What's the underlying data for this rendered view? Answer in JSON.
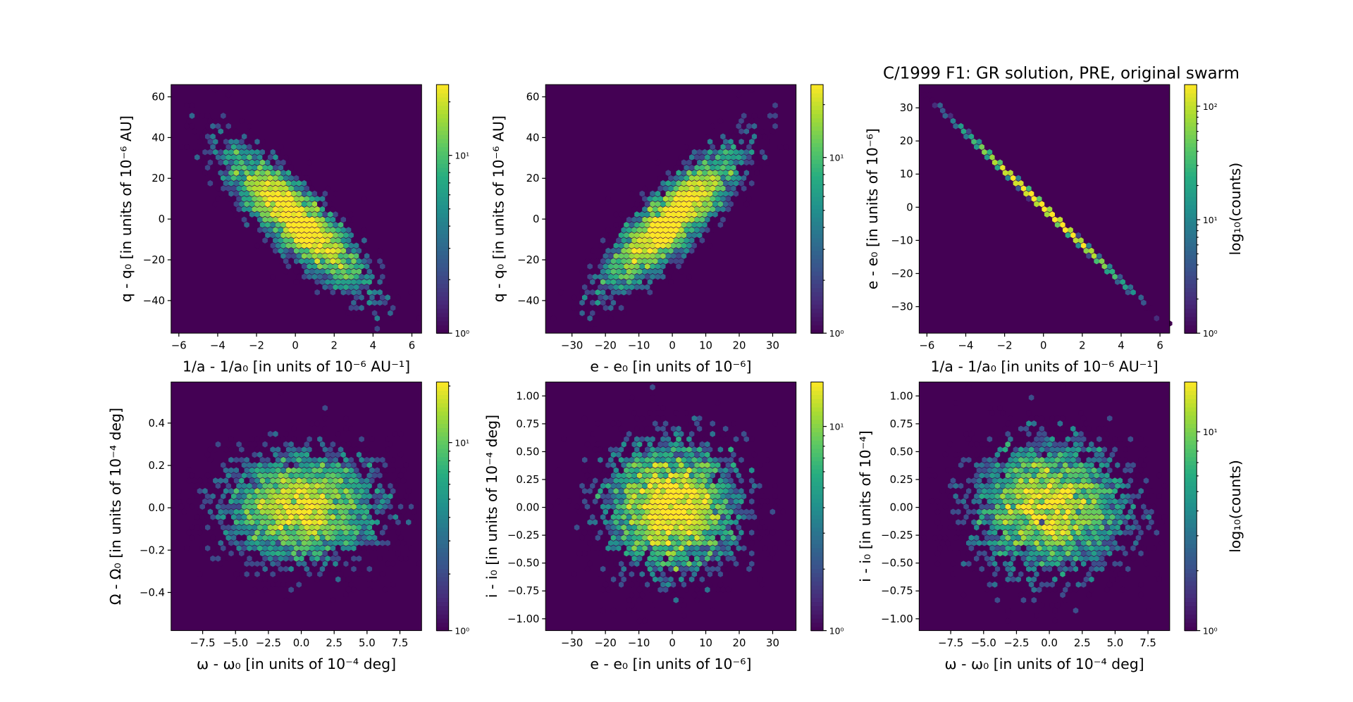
{
  "title": "C/1999 F1: GR solution, PRE, original swarm",
  "chart_data": [
    {
      "type": "heatmap",
      "subtype": "hexbin",
      "xlabel": "1/a - 1/a₀ [in units of 10⁻⁶ AU⁻¹]",
      "ylabel": "q - q₀ [in units of 10⁻⁶ AU]",
      "xlim": [
        -6.4,
        6.5
      ],
      "ylim": [
        -56,
        66
      ],
      "xticks": [
        -6,
        -4,
        -2,
        0,
        2,
        4,
        6
      ],
      "xtick_labels": [
        "−6",
        "−4",
        "−2",
        "0",
        "2",
        "4",
        "6"
      ],
      "yticks": [
        -40,
        -20,
        0,
        20,
        40,
        60
      ],
      "ytick_labels": [
        "−40",
        "−20",
        "0",
        "20",
        "40",
        "60"
      ],
      "correlation": "negative",
      "colorbar": {
        "scale": "log",
        "range": [
          1,
          25
        ],
        "ticks": [
          1,
          10
        ],
        "tick_labels": [
          "10⁰",
          "10¹"
        ],
        "label": ""
      }
    },
    {
      "type": "heatmap",
      "subtype": "hexbin",
      "xlabel": "e - e₀ [in units of 10⁻⁶]",
      "ylabel": "q - q₀ [in units of 10⁻⁶ AU]",
      "xlim": [
        -37.9,
        37
      ],
      "ylim": [
        -56,
        66
      ],
      "xticks": [
        -30,
        -20,
        -10,
        0,
        10,
        20,
        30
      ],
      "xtick_labels": [
        "−30",
        "−20",
        "−10",
        "0",
        "10",
        "20",
        "30"
      ],
      "yticks": [
        -40,
        -20,
        0,
        20,
        40,
        60
      ],
      "ytick_labels": [
        "−40",
        "−20",
        "0",
        "20",
        "40",
        "60"
      ],
      "correlation": "positive",
      "colorbar": {
        "scale": "log",
        "range": [
          1,
          26
        ],
        "ticks": [
          1,
          10
        ],
        "tick_labels": [
          "10⁰",
          "10¹"
        ],
        "label": ""
      }
    },
    {
      "type": "heatmap",
      "subtype": "hexbin",
      "xlabel": "1/a - 1/a₀ [in units of 10⁻⁶ AU⁻¹]",
      "ylabel": "e - e₀ [in units of 10⁻⁶]",
      "xlim": [
        -6.4,
        6.5
      ],
      "ylim": [
        -38,
        37
      ],
      "xticks": [
        -6,
        -4,
        -2,
        0,
        2,
        4,
        6
      ],
      "xtick_labels": [
        "−6",
        "−4",
        "−2",
        "0",
        "2",
        "4",
        "6"
      ],
      "yticks": [
        -30,
        -20,
        -10,
        0,
        10,
        20,
        30
      ],
      "ytick_labels": [
        "−30",
        "−20",
        "−10",
        "0",
        "10",
        "20",
        "30"
      ],
      "correlation": "linear negative",
      "colorbar": {
        "scale": "log",
        "range": [
          1,
          155
        ],
        "ticks": [
          1,
          10,
          100
        ],
        "tick_labels": [
          "10⁰",
          "10¹",
          "10²"
        ],
        "label": "log₁₀(counts)"
      }
    },
    {
      "type": "heatmap",
      "subtype": "hexbin",
      "xlabel": "ω - ω₀ [in units of 10⁻⁴ deg]",
      "ylabel": "Ω - Ω₀ [in units of 10⁻⁴ deg]",
      "xlim": [
        -9.9,
        9.15
      ],
      "ylim": [
        -0.58,
        0.594
      ],
      "xticks": [
        -7.5,
        -5,
        -2.5,
        0,
        2.5,
        5,
        7.5
      ],
      "xtick_labels": [
        "−7.5",
        "−5.0",
        "−2.5",
        "0.0",
        "2.5",
        "5.0",
        "7.5"
      ],
      "yticks": [
        -0.4,
        -0.2,
        0,
        0.2,
        0.4
      ],
      "ytick_labels": [
        "−0.4",
        "−0.2",
        "0.0",
        "0.2",
        "0.4"
      ],
      "correlation": "none",
      "colorbar": {
        "scale": "log",
        "range": [
          1,
          21
        ],
        "ticks": [
          1,
          10
        ],
        "tick_labels": [
          "10⁰",
          "10¹"
        ],
        "label": ""
      }
    },
    {
      "type": "heatmap",
      "subtype": "hexbin",
      "xlabel": "e - e₀ [in units of 10⁻⁶]",
      "ylabel": "i - i₀ [in units of 10⁻⁴ deg]",
      "xlim": [
        -37.9,
        37
      ],
      "ylim": [
        -1.106,
        1.125
      ],
      "xticks": [
        -30,
        -20,
        -10,
        0,
        10,
        20,
        30
      ],
      "xtick_labels": [
        "−30",
        "−20",
        "−10",
        "0",
        "10",
        "20",
        "30"
      ],
      "yticks": [
        -1,
        -0.75,
        -0.5,
        -0.25,
        0,
        0.25,
        0.5,
        0.75,
        1
      ],
      "ytick_labels": [
        "−1.00",
        "−0.75",
        "−0.50",
        "−0.25",
        "0.00",
        "0.25",
        "0.50",
        "0.75",
        "1.00"
      ],
      "correlation": "none",
      "colorbar": {
        "scale": "log",
        "range": [
          1,
          16.5
        ],
        "ticks": [
          1,
          10
        ],
        "tick_labels": [
          "10⁰",
          "10¹"
        ],
        "label": ""
      }
    },
    {
      "type": "heatmap",
      "subtype": "hexbin",
      "xlabel": "ω - ω₀ [in units of 10⁻⁴ deg]",
      "ylabel": "i - i₀ [in units of 10⁻⁴]",
      "xlim": [
        -9.9,
        9.15
      ],
      "ylim": [
        -1.106,
        1.125
      ],
      "xticks": [
        -7.5,
        -5,
        -2.5,
        0,
        2.5,
        5,
        7.5
      ],
      "xtick_labels": [
        "−7.5",
        "−5.0",
        "−2.5",
        "0.0",
        "2.5",
        "5.0",
        "7.5"
      ],
      "yticks": [
        -1,
        -0.75,
        -0.5,
        -0.25,
        0,
        0.25,
        0.5,
        0.75,
        1
      ],
      "ytick_labels": [
        "−1.00",
        "−0.75",
        "−0.50",
        "−0.25",
        "0.00",
        "0.25",
        "0.50",
        "0.75",
        "1.00"
      ],
      "correlation": "none",
      "colorbar": {
        "scale": "log",
        "range": [
          1,
          17.8
        ],
        "ticks": [
          1,
          10
        ],
        "tick_labels": [
          "10⁰",
          "10¹"
        ],
        "label": "log₁₀(counts)"
      }
    }
  ],
  "colormap": "viridis",
  "background_color": "#440154"
}
